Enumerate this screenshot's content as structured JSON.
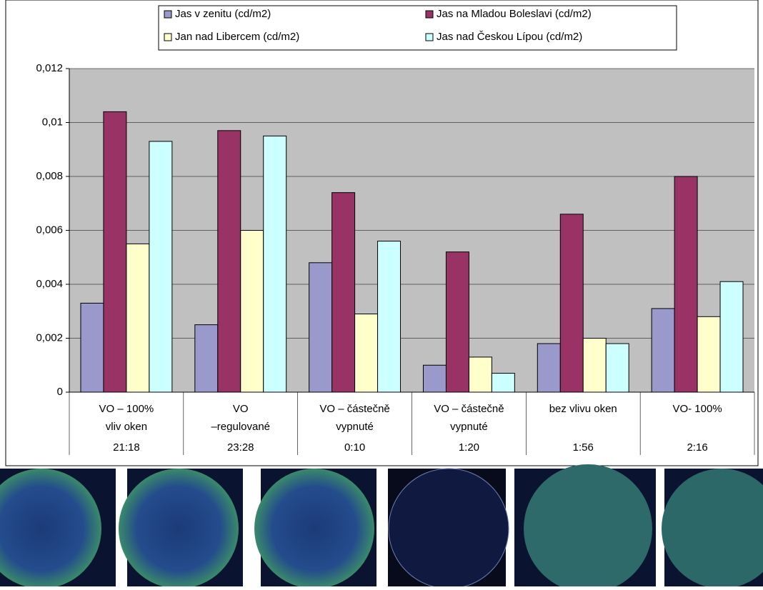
{
  "chart_data": {
    "type": "bar",
    "categories": [
      [
        "VO – 100%",
        "vliv oken"
      ],
      [
        "VO",
        "–regulované"
      ],
      [
        "VO – částečně",
        "vypnuté"
      ],
      [
        "VO – částečně",
        "vypnuté"
      ],
      [
        "bez vlivu oken"
      ],
      [
        "VO- 100%"
      ]
    ],
    "times": [
      "21:18",
      "23:28",
      "0:10",
      "1:20",
      "1:56",
      "2:16"
    ],
    "series": [
      {
        "name": "Jas v zenitu (cd/m2)",
        "color": "#9999cc",
        "values": [
          0.0033,
          0.0025,
          0.0048,
          0.001,
          0.0018,
          0.0031
        ]
      },
      {
        "name": "Jas na Mladou Boleslavi (cd/m2)",
        "color": "#993366",
        "values": [
          0.0104,
          0.0097,
          0.0074,
          0.0052,
          0.0066,
          0.008
        ]
      },
      {
        "name": "Jan nad Libercem (cd/m2)",
        "color": "#ffffcc",
        "values": [
          0.0055,
          0.006,
          0.0029,
          0.0013,
          0.002,
          0.0028
        ]
      },
      {
        "name": "Jas nad Českou Lípou (cd/m2)",
        "color": "#ccffff",
        "values": [
          0.0093,
          0.0095,
          0.0056,
          0.0007,
          0.0018,
          0.0041
        ]
      }
    ],
    "ylim": [
      0,
      0.012
    ],
    "yticks": [
      0,
      {
        "value": 0.002,
        "label": "0,002"
      },
      {
        "value": 0.004,
        "label": "0,004"
      },
      {
        "value": 0.006,
        "label": "0,006"
      },
      {
        "value": 0.008,
        "label": "0,008"
      },
      {
        "value": 0.01,
        "label": "0,01"
      },
      {
        "value": 0.012,
        "label": "0,012"
      }
    ],
    "grid": true,
    "legend": "top"
  }
}
